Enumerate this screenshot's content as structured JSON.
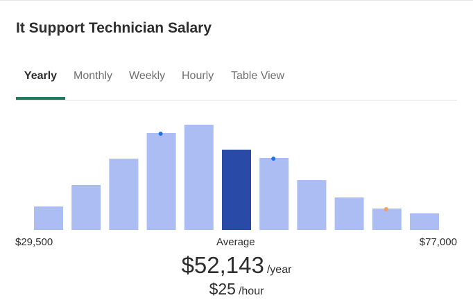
{
  "page": {
    "title": "It Support Technician Salary"
  },
  "tabs": [
    {
      "label": "Yearly",
      "active": true
    },
    {
      "label": "Monthly",
      "active": false
    },
    {
      "label": "Weekly",
      "active": false
    },
    {
      "label": "Hourly",
      "active": false
    },
    {
      "label": "Table View",
      "active": false
    }
  ],
  "colors": {
    "bar": "#abbdf3",
    "bar_highlight": "#2a4aa8",
    "marker_blue": "#1a73e8",
    "marker_orange": "#f5a05a",
    "tab_indicator": "#1f7a5e"
  },
  "chart_data": {
    "type": "bar",
    "title": "",
    "xlabel": "",
    "ylabel": "",
    "x_range_labels": {
      "min": "$29,500",
      "center": "Average",
      "max": "$77,000"
    },
    "values": [
      34,
      65,
      103,
      140,
      152,
      116,
      104,
      72,
      47,
      31,
      24
    ],
    "highlight_index": 5,
    "markers": [
      {
        "bar_index": 3,
        "color": "marker_blue"
      },
      {
        "bar_index": 6,
        "color": "marker_blue"
      },
      {
        "bar_index": 9,
        "color": "marker_orange"
      }
    ],
    "ylim": [
      0,
      160
    ]
  },
  "summary": {
    "yearly_value": "$52,143",
    "yearly_unit": "/year",
    "hourly_value": "$25",
    "hourly_unit": "/hour"
  }
}
